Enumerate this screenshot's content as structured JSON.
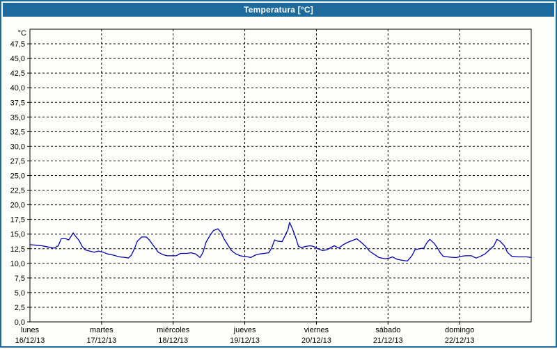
{
  "window": {
    "title": "Temperatura [°C]",
    "colors": {
      "title_bar": "#1c6b9c",
      "frame_border": "#1c6b9c",
      "background": "#fdfdfa",
      "plot_background": "#ffffff",
      "axis": "#000000",
      "grid": "#000000",
      "series_line": "#0000b2",
      "title_text": "#ffffff"
    }
  },
  "chart_data": {
    "type": "line",
    "title": "Temperatura [°C]",
    "ylabel_unit": "°C",
    "legend": "none",
    "y_axis": {
      "min": 0,
      "max": 50,
      "tick_step": 2.5,
      "grid_style": "dashed",
      "tick_labels_top_to_bottom": [
        "47,5",
        "45,0",
        "42,5",
        "40,0",
        "37,5",
        "35,0",
        "32,5",
        "30,0",
        "27,5",
        "25,0",
        "22,5",
        "20,0",
        "17,5",
        "15,0",
        "12,5",
        "10,0",
        "7,5",
        "5,0",
        "2,5",
        "0,0"
      ]
    },
    "x_axis": {
      "span_days": 7,
      "grid_style": "dashed",
      "labels": [
        {
          "day": "lunes",
          "date": "16/12/13"
        },
        {
          "day": "martes",
          "date": "17/12/13"
        },
        {
          "day": "miércoles",
          "date": "18/12/13"
        },
        {
          "day": "jueves",
          "date": "19/12/13"
        },
        {
          "day": "viernes",
          "date": "20/12/13"
        },
        {
          "day": "sábado",
          "date": "21/12/13"
        },
        {
          "day": "domingo",
          "date": "22/12/13"
        }
      ]
    },
    "series": [
      {
        "name": "Temperatura",
        "unit": "°C",
        "color": "#0000b2",
        "points_hours_temp": [
          [
            0,
            13.2
          ],
          [
            2,
            13.1
          ],
          [
            4,
            13.0
          ],
          [
            6,
            12.8
          ],
          [
            8,
            12.6
          ],
          [
            9.5,
            13.0
          ],
          [
            10.5,
            14.2
          ],
          [
            12,
            14.2
          ],
          [
            13,
            14.0
          ],
          [
            14.5,
            15.2
          ],
          [
            15.5,
            14.5
          ],
          [
            16.5,
            13.9
          ],
          [
            17.5,
            12.9
          ],
          [
            18.5,
            12.3
          ],
          [
            20,
            12.1
          ],
          [
            21.5,
            11.9
          ],
          [
            23,
            12.1
          ],
          [
            24.5,
            11.9
          ],
          [
            26,
            11.6
          ],
          [
            28,
            11.4
          ],
          [
            30,
            11.1
          ],
          [
            32,
            11.0
          ],
          [
            33,
            10.9
          ],
          [
            34,
            11.4
          ],
          [
            35,
            12.5
          ],
          [
            36,
            13.8
          ],
          [
            37.5,
            14.5
          ],
          [
            39,
            14.5
          ],
          [
            40,
            14.0
          ],
          [
            41,
            13.3
          ],
          [
            42,
            12.6
          ],
          [
            43,
            11.9
          ],
          [
            44.5,
            11.5
          ],
          [
            46,
            11.3
          ],
          [
            47.5,
            11.3
          ],
          [
            49,
            11.3
          ],
          [
            50.5,
            11.7
          ],
          [
            52.5,
            11.7
          ],
          [
            54,
            11.8
          ],
          [
            55.5,
            11.6
          ],
          [
            57,
            11.0
          ],
          [
            58,
            11.9
          ],
          [
            59,
            13.6
          ],
          [
            60.5,
            14.9
          ],
          [
            61.5,
            15.6
          ],
          [
            63,
            15.9
          ],
          [
            64,
            15.3
          ],
          [
            65,
            14.2
          ],
          [
            66.5,
            13.0
          ],
          [
            67.5,
            12.2
          ],
          [
            69,
            11.6
          ],
          [
            70.5,
            11.3
          ],
          [
            71.5,
            11.2
          ],
          [
            73,
            11.1
          ],
          [
            74,
            11.0
          ],
          [
            75.5,
            11.4
          ],
          [
            77,
            11.6
          ],
          [
            78.5,
            11.7
          ],
          [
            80,
            11.8
          ],
          [
            81,
            12.6
          ],
          [
            82,
            14.0
          ],
          [
            83,
            13.8
          ],
          [
            84.5,
            13.7
          ],
          [
            85.5,
            14.7
          ],
          [
            86.5,
            15.8
          ],
          [
            87,
            17.0
          ],
          [
            88,
            15.9
          ],
          [
            89,
            14.5
          ],
          [
            90,
            12.9
          ],
          [
            91,
            12.7
          ],
          [
            92.5,
            12.9
          ],
          [
            94,
            13.0
          ],
          [
            95,
            12.9
          ],
          [
            96.5,
            12.5
          ],
          [
            98,
            12.2
          ],
          [
            99.5,
            12.3
          ],
          [
            100.5,
            12.6
          ],
          [
            102,
            13.0
          ],
          [
            103.5,
            12.6
          ],
          [
            105,
            13.2
          ],
          [
            106.5,
            13.6
          ],
          [
            108,
            13.9
          ],
          [
            109.5,
            14.2
          ],
          [
            111,
            13.6
          ],
          [
            112.5,
            12.9
          ],
          [
            114,
            12.0
          ],
          [
            115.5,
            11.5
          ],
          [
            117,
            11.0
          ],
          [
            119,
            10.8
          ],
          [
            120.5,
            10.9
          ],
          [
            121.5,
            11.1
          ],
          [
            123,
            10.7
          ],
          [
            125,
            10.5
          ],
          [
            126.5,
            10.4
          ],
          [
            128,
            11.3
          ],
          [
            129,
            12.3
          ],
          [
            130.5,
            12.5
          ],
          [
            132,
            12.6
          ],
          [
            133,
            13.5
          ],
          [
            134,
            14.1
          ],
          [
            135.5,
            13.4
          ],
          [
            136.5,
            12.7
          ],
          [
            137.5,
            11.8
          ],
          [
            138.5,
            11.2
          ],
          [
            140,
            11.1
          ],
          [
            142,
            11.0
          ],
          [
            143,
            11.0
          ],
          [
            144.5,
            11.2
          ],
          [
            146,
            11.3
          ],
          [
            148,
            11.3
          ],
          [
            149.5,
            10.9
          ],
          [
            151,
            11.2
          ],
          [
            152.5,
            11.6
          ],
          [
            154,
            12.3
          ],
          [
            155.5,
            13.0
          ],
          [
            156.5,
            14.1
          ],
          [
            157.5,
            13.8
          ],
          [
            159,
            13.0
          ],
          [
            160,
            11.9
          ],
          [
            161.5,
            11.2
          ],
          [
            163.5,
            11.1
          ],
          [
            165,
            11.1
          ],
          [
            166.5,
            11.1
          ],
          [
            168,
            11.0
          ]
        ]
      }
    ]
  }
}
